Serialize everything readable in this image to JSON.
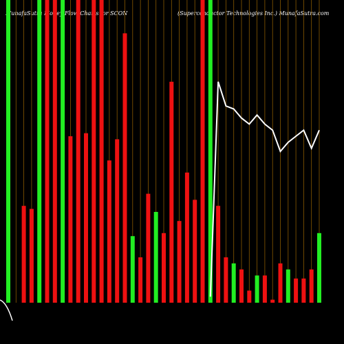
{
  "chart_data": {
    "type": "bar",
    "title": "MunafaSutra  Money Flow  Charts for SCON",
    "subtitle": "(Superconductor Technologies Inc.) MunafaSutra.com",
    "categories": [
      null,
      null,
      null,
      null,
      null,
      null,
      null,
      null,
      null,
      null,
      null,
      null,
      null,
      null,
      null,
      null,
      null,
      null,
      null,
      null,
      null,
      null,
      null,
      null,
      null,
      null,
      null,
      null,
      null,
      null,
      null,
      null,
      null,
      null,
      null,
      null,
      null,
      null,
      null,
      null,
      null
    ],
    "ylim": [
      0,
      100
    ],
    "series": [
      {
        "values": [
          100,
          0,
          32,
          31,
          100,
          100,
          100,
          100,
          55,
          100,
          56,
          100,
          100,
          47,
          54,
          89,
          22,
          15,
          36,
          30,
          23,
          73,
          27,
          43,
          34,
          100,
          100,
          32,
          15,
          13,
          11,
          4,
          9,
          9,
          1,
          13,
          11,
          8,
          8,
          11,
          23
        ],
        "colors": [
          "#22ee22",
          "#ee1111",
          "#ee1111",
          "#ee1111",
          "#22ee22",
          "#ee1111",
          "#ee1111",
          "#22ee22",
          "#ee1111",
          "#ee1111",
          "#ee1111",
          "#ee1111",
          "#ee1111",
          "#ee1111",
          "#ee1111",
          "#ee1111",
          "#22ee22",
          "#ee1111",
          "#ee1111",
          "#22ee22",
          "#ee1111",
          "#ee1111",
          "#ee1111",
          "#ee1111",
          "#ee1111",
          "#ee1111",
          "#22ee22",
          "#ee1111",
          "#ee1111",
          "#22ee22",
          "#ee1111",
          "#ee1111",
          "#22ee22",
          "#ee1111",
          "#ee1111",
          "#ee1111",
          "#22ee22",
          "#ee1111",
          "#ee1111",
          "#ee1111",
          "#22ee22"
        ]
      },
      {
        "type": "line",
        "color": "#ffffff",
        "values": [
          null,
          null,
          null,
          null,
          null,
          null,
          null,
          null,
          null,
          null,
          null,
          null,
          null,
          null,
          null,
          null,
          null,
          null,
          null,
          null,
          null,
          null,
          null,
          null,
          null,
          null,
          2,
          73,
          65,
          64,
          61,
          59,
          62,
          59,
          57,
          50,
          53,
          55,
          57,
          51,
          57
        ]
      }
    ],
    "gridline_color": "#8a5a00"
  }
}
